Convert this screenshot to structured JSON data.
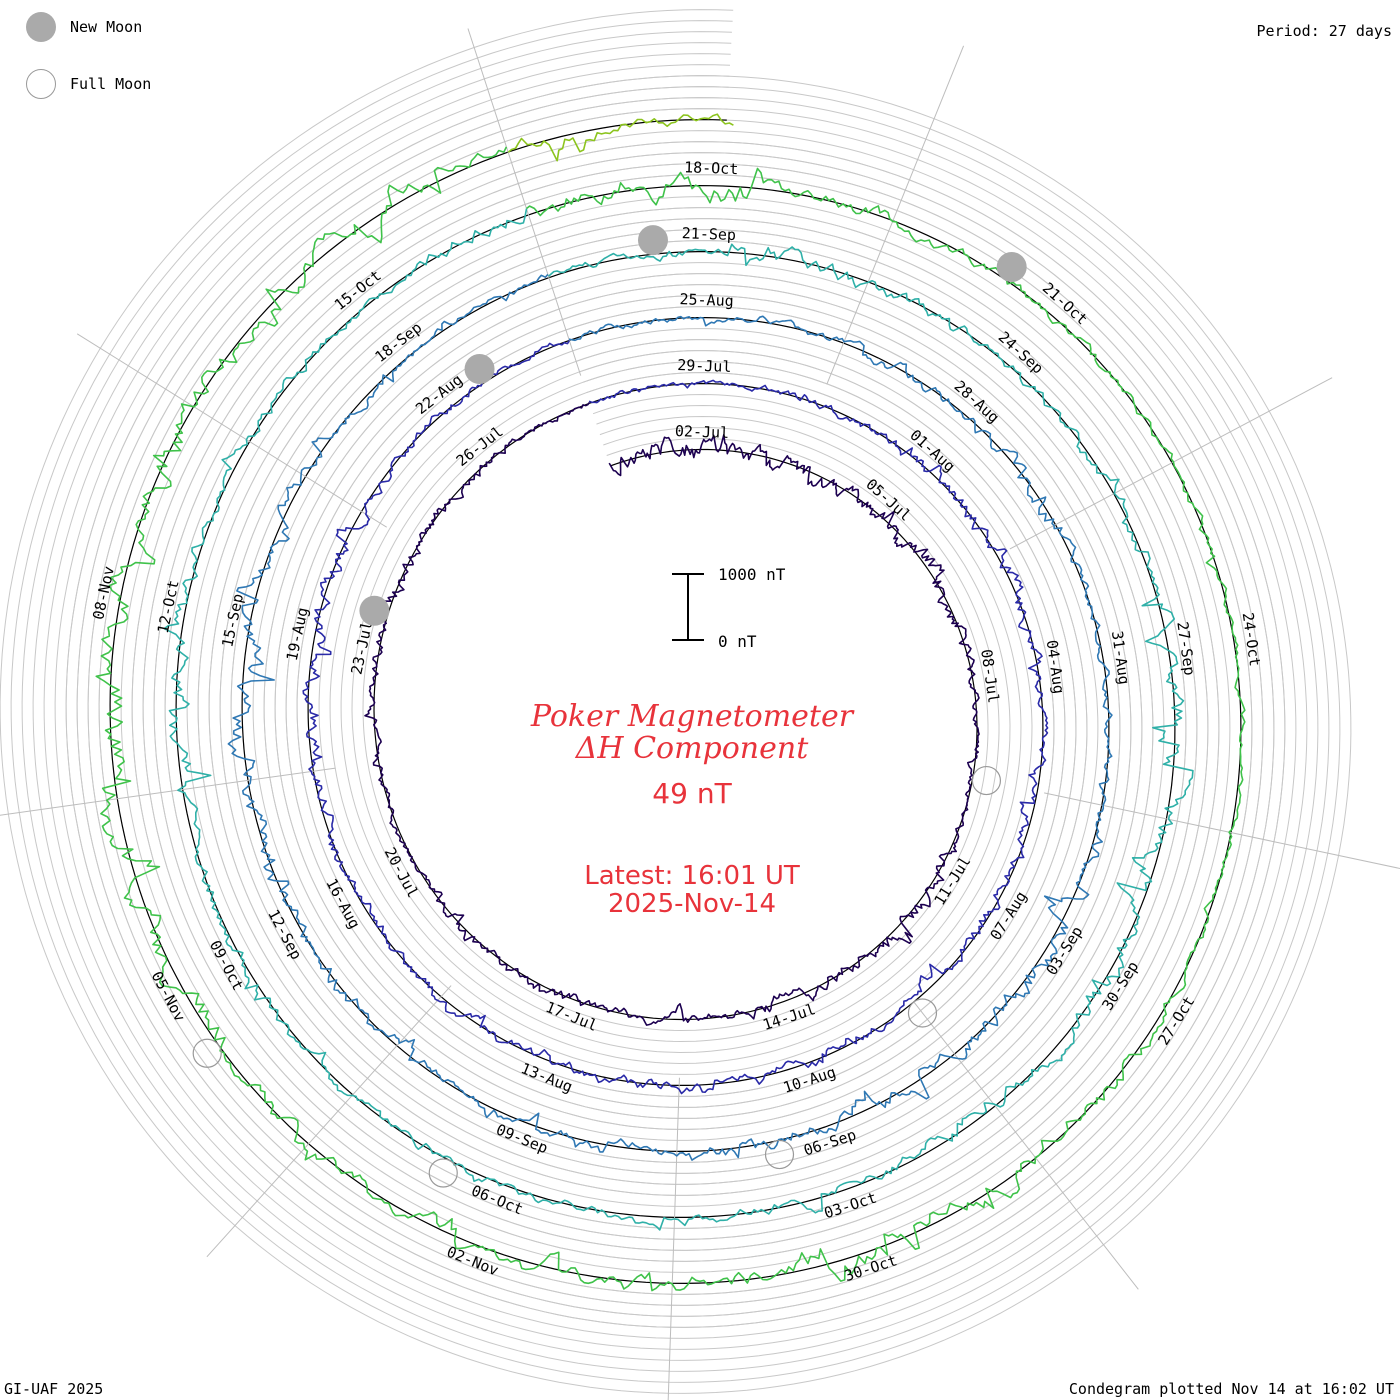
{
  "legend": {
    "new_moon": "New Moon",
    "full_moon": "Full Moon"
  },
  "period": "Period: 27 days",
  "footer_left": "GI-UAF 2025",
  "footer_right": "Condegram plotted Nov 14 at 16:02 UT",
  "colors": {
    "label_red": "#e8333b",
    "grid": "#b4b4b4",
    "moon": "#aaaaaa"
  },
  "chart_data": {
    "type": "line",
    "title": "Poker Magnetometer",
    "subtitle": "ΔH Component",
    "current_value": "49 nT",
    "latest_time": "Latest: 16:01 UT",
    "latest_date": "2025-Nov-14",
    "scale_bar": {
      "top_label": "1000 nT",
      "bottom_label": "0 nT",
      "top_value": 1000,
      "bottom_value": 0
    },
    "period_days": 27,
    "x_range": [
      "2025-07-01",
      "2025-11-14"
    ],
    "y_unit": "nT",
    "series_colors": [
      "#1c0050",
      "#2a2aa8",
      "#2f78b4",
      "#2fb0a8",
      "#3fc24a",
      "#8cc41e",
      "#c8b018",
      "#d07818",
      "#c02a10"
    ],
    "date_labels": [
      {
        "text": "02-Jul",
        "day": 1
      },
      {
        "text": "05-Jul",
        "day": 4
      },
      {
        "text": "08-Jul",
        "day": 7
      },
      {
        "text": "11-Jul",
        "day": 10
      },
      {
        "text": "14-Jul",
        "day": 13
      },
      {
        "text": "17-Jul",
        "day": 16
      },
      {
        "text": "20-Jul",
        "day": 19
      },
      {
        "text": "23-Jul",
        "day": 22
      },
      {
        "text": "26-Jul",
        "day": 25
      },
      {
        "text": "29-Jul",
        "day": 28
      },
      {
        "text": "01-Aug",
        "day": 31
      },
      {
        "text": "04-Aug",
        "day": 34
      },
      {
        "text": "07-Aug",
        "day": 37
      },
      {
        "text": "10-Aug",
        "day": 40
      },
      {
        "text": "13-Aug",
        "day": 43
      },
      {
        "text": "16-Aug",
        "day": 46
      },
      {
        "text": "19-Aug",
        "day": 49
      },
      {
        "text": "22-Aug",
        "day": 52
      },
      {
        "text": "25-Aug",
        "day": 55
      },
      {
        "text": "28-Aug",
        "day": 58
      },
      {
        "text": "31-Aug",
        "day": 61
      },
      {
        "text": "03-Sep",
        "day": 64
      },
      {
        "text": "06-Sep",
        "day": 67
      },
      {
        "text": "09-Sep",
        "day": 70
      },
      {
        "text": "12-Sep",
        "day": 73
      },
      {
        "text": "15-Sep",
        "day": 76
      },
      {
        "text": "18-Sep",
        "day": 79
      },
      {
        "text": "21-Sep",
        "day": 82
      },
      {
        "text": "24-Sep",
        "day": 85
      },
      {
        "text": "27-Sep",
        "day": 88
      },
      {
        "text": "30-Sep",
        "day": 91
      },
      {
        "text": "03-Oct",
        "day": 94
      },
      {
        "text": "06-Oct",
        "day": 97
      },
      {
        "text": "09-Oct",
        "day": 100
      },
      {
        "text": "12-Oct",
        "day": 103
      },
      {
        "text": "15-Oct",
        "day": 106
      },
      {
        "text": "18-Oct",
        "day": 109
      },
      {
        "text": "21-Oct",
        "day": 112
      },
      {
        "text": "24-Oct",
        "day": 115
      },
      {
        "text": "27-Oct",
        "day": 118
      },
      {
        "text": "30-Oct",
        "day": 121
      },
      {
        "text": "02-Nov",
        "day": 124
      },
      {
        "text": "05-Nov",
        "day": 127
      },
      {
        "text": "08-Nov",
        "day": 130
      }
    ],
    "new_moons": [
      "2025-07-24",
      "2025-08-23",
      "2025-09-21",
      "2025-10-21"
    ],
    "full_moons": [
      "2025-07-10",
      "2025-08-09",
      "2025-09-07",
      "2025-10-07",
      "2025-11-05"
    ],
    "daily_activity_nT": [
      260,
      280,
      240,
      230,
      210,
      250,
      180,
      90,
      70,
      80,
      160,
      200,
      150,
      170,
      130,
      110,
      120,
      100,
      90,
      80,
      90,
      100,
      120,
      150,
      110,
      90,
      80,
      70,
      60,
      90,
      100,
      130,
      150,
      170,
      120,
      110,
      140,
      160,
      130,
      100,
      120,
      140,
      150,
      130,
      110,
      100,
      120,
      150,
      170,
      210,
      180,
      120,
      100,
      90,
      80,
      90,
      100,
      120,
      140,
      160,
      110,
      90,
      100,
      120,
      300,
      250,
      200,
      180,
      150,
      130,
      120,
      110,
      140,
      160,
      200,
      260,
      230,
      170,
      130,
      110,
      100,
      90,
      150,
      220,
      160,
      120,
      100,
      90,
      200,
      310,
      250,
      240,
      220,
      190,
      160,
      130,
      110,
      90,
      80,
      120,
      150,
      170,
      260,
      200,
      150,
      130,
      120,
      180,
      310,
      330,
      200,
      150,
      120,
      100,
      80,
      70,
      80,
      100,
      150,
      190,
      220,
      240,
      200,
      180,
      160,
      150,
      200,
      300,
      330,
      350,
      320,
      280,
      300,
      250,
      200,
      180,
      150,
      120
    ]
  }
}
